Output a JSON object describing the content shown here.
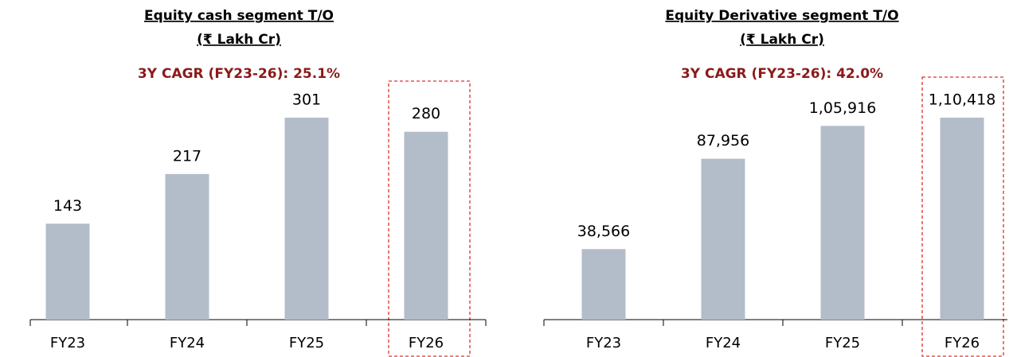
{
  "chart_data": [
    {
      "type": "bar",
      "title": "Equity cash segment T/O",
      "subtitle": "(₹ Lakh Cr)",
      "annotation": "3Y CAGR (FY23-26): 25.1%",
      "categories": [
        "FY23",
        "FY24",
        "FY25",
        "FY26"
      ],
      "values": [
        143,
        217,
        301,
        280
      ],
      "color": "#b3bdc9"
    },
    {
      "type": "bar",
      "title": "Equity Derivative segment T/O",
      "subtitle": "(₹ Lakh Cr)",
      "annotation": "3Y CAGR (FY23-26): 42.0%",
      "categories": [
        "FY23",
        "FY24",
        "FY25",
        "FY26"
      ],
      "values": [
        38566,
        87956,
        105916,
        110418
      ],
      "value_labels": [
        "38,566",
        "87,956",
        "1,05,916",
        "1,10,418"
      ],
      "color": "#b3bdc9"
    }
  ]
}
